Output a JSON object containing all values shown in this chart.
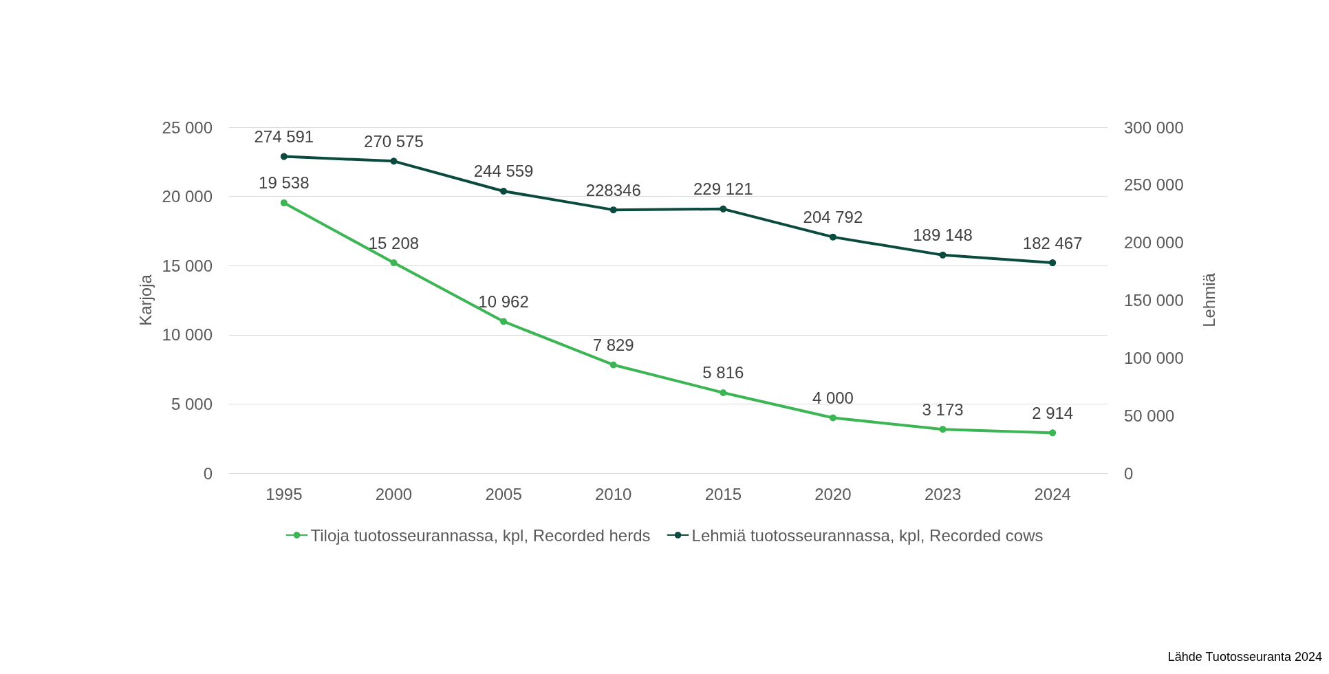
{
  "chart_data": {
    "type": "line",
    "categories": [
      "1995",
      "2000",
      "2005",
      "2010",
      "2015",
      "2020",
      "2023",
      "2024"
    ],
    "series": [
      {
        "name": "Tiloja tuotosseurannassa, kpl, Recorded herds",
        "color": "#3cb554",
        "values": [
          19538,
          15208,
          10962,
          7829,
          5816,
          4000,
          3173,
          2914
        ],
        "value_labels": [
          "19 538",
          "15 208",
          "10 962",
          "7 829",
          "5 816",
          "4 000",
          "3 173",
          "2 914"
        ]
      },
      {
        "name": "Lehmiä tuotosseurannassa, kpl, Recorded cows",
        "color": "#0b4a3f",
        "axis": "y2",
        "values": [
          274591,
          270575,
          244559,
          228346,
          229121,
          204792,
          189148,
          182467
        ],
        "value_labels": [
          "274 591",
          "270 575",
          "244 559",
          "228346",
          "229 121",
          "204 792",
          "189 148",
          "182 467"
        ]
      }
    ],
    "ylabel": "Karjoja",
    "y2label": "Lehmiä",
    "ylim": [
      0,
      25000
    ],
    "yticks": [
      0,
      {
        "value": 5000,
        "label": "5 000"
      },
      {
        "value": 10000,
        "label": "10 000"
      },
      {
        "value": 15000,
        "label": "15 000"
      },
      {
        "value": 20000,
        "label": "20 000"
      },
      {
        "value": 25000,
        "label": "25 000"
      }
    ],
    "y2lim": [
      0,
      300000
    ],
    "y2ticks": [
      0,
      {
        "value": 50000,
        "label": "50 000"
      },
      {
        "value": 100000,
        "label": "100 000"
      },
      {
        "value": 150000,
        "label": "150 000"
      },
      {
        "value": 200000,
        "label": "200 000"
      },
      {
        "value": 250000,
        "label": "250 000"
      },
      {
        "value": 300000,
        "label": "300 000"
      }
    ],
    "grid": "y",
    "legend": "bottom",
    "marker": "circle",
    "line_style": "solid",
    "annotations": [
      "Lähde Tuotosseuranta 2024"
    ]
  }
}
